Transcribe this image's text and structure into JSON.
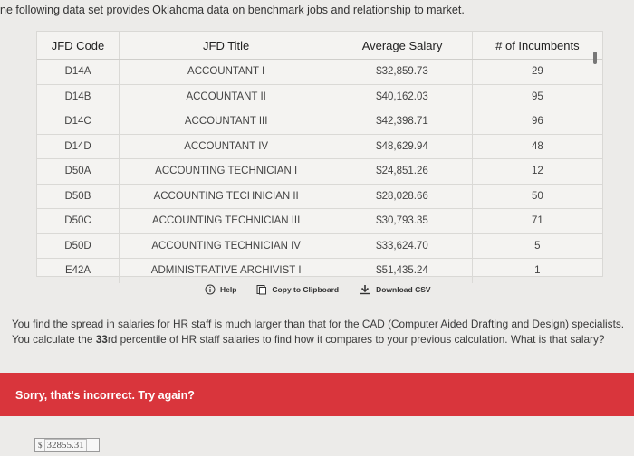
{
  "intro_text": "ne following data set provides Oklahoma data on benchmark jobs and relationship to market.",
  "table": {
    "headers": [
      "JFD Code",
      "JFD Title",
      "Average Salary",
      "# of Incumbents"
    ],
    "rows": [
      [
        "D14A",
        "ACCOUNTANT I",
        "$32,859.73",
        "29"
      ],
      [
        "D14B",
        "ACCOUNTANT II",
        "$40,162.03",
        "95"
      ],
      [
        "D14C",
        "ACCOUNTANT III",
        "$42,398.71",
        "96"
      ],
      [
        "D14D",
        "ACCOUNTANT IV",
        "$48,629.94",
        "48"
      ],
      [
        "D50A",
        "ACCOUNTING TECHNICIAN I",
        "$24,851.26",
        "12"
      ],
      [
        "D50B",
        "ACCOUNTING TECHNICIAN II",
        "$28,028.66",
        "50"
      ],
      [
        "D50C",
        "ACCOUNTING TECHNICIAN III",
        "$30,793.35",
        "71"
      ],
      [
        "D50D",
        "ACCOUNTING TECHNICIAN IV",
        "$33,624.70",
        "5"
      ],
      [
        "E42A",
        "ADMINISTRATIVE ARCHIVIST I",
        "$51,435.24",
        "1"
      ]
    ]
  },
  "toolbar": {
    "help_label": "Help",
    "copy_label": "Copy to Clipboard",
    "download_label": "Download CSV"
  },
  "question": {
    "part1": "You find the spread in salaries for HR staff is much larger than that for the CAD (Computer Aided Drafting and Design) specialists. You calculate the ",
    "emphasis": "33",
    "part2": "rd percentile of HR staff salaries to find how it compares to your previous calculation. What is that salary?"
  },
  "feedback": {
    "message": "Sorry, that's incorrect. Try again?"
  },
  "answer": {
    "currency": "$",
    "value": "32855.31"
  },
  "colors": {
    "error_bar": "#d9353c",
    "background": "#ecebe9"
  }
}
